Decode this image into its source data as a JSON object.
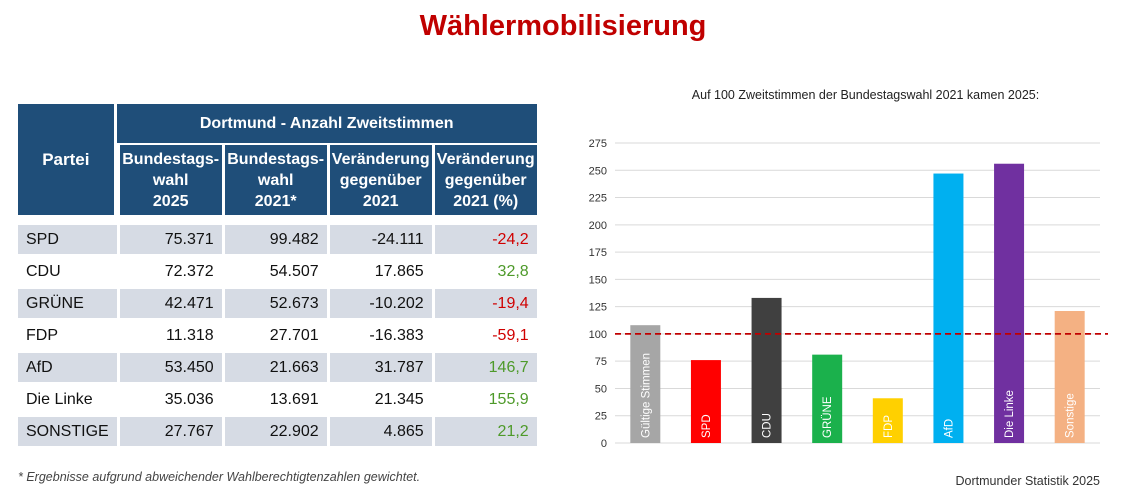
{
  "title": "Wählermobilisierung",
  "table": {
    "party_header": "Partei",
    "group_header": "Dortmund - Anzahl Zweitstimmen",
    "col_headers": [
      [
        "Bundestags-",
        "wahl",
        "2025"
      ],
      [
        "Bundestags-",
        "wahl",
        "2021*"
      ],
      [
        "Veränderung",
        "gegenüber",
        "2021"
      ],
      [
        "Veränderung",
        "gegenüber",
        "2021 (%)"
      ]
    ],
    "rows": [
      {
        "party": "SPD",
        "v2025": "75.371",
        "v2021": "99.482",
        "change": "-24.111",
        "pct": "-24,2"
      },
      {
        "party": "CDU",
        "v2025": "72.372",
        "v2021": "54.507",
        "change": "17.865",
        "pct": "32,8"
      },
      {
        "party": "GRÜNE",
        "v2025": "42.471",
        "v2021": "52.673",
        "change": "-10.202",
        "pct": "-19,4"
      },
      {
        "party": "FDP",
        "v2025": "11.318",
        "v2021": "27.701",
        "change": "-16.383",
        "pct": "-59,1"
      },
      {
        "party": "AfD",
        "v2025": "53.450",
        "v2021": "21.663",
        "change": "31.787",
        "pct": "146,7"
      },
      {
        "party": "Die Linke",
        "v2025": "35.036",
        "v2021": "13.691",
        "change": "21.345",
        "pct": "155,9"
      },
      {
        "party": "SONSTIGE",
        "v2025": "27.767",
        "v2021": "22.902",
        "change": "4.865",
        "pct": "21,2"
      }
    ]
  },
  "footnote": "* Ergebnisse aufgrund abweichender Wahlberechtigtenzahlen gewichtet.",
  "source": "Dortmunder Statistik 2025",
  "chart_data": {
    "type": "bar",
    "title": "Auf 100 Zweitstimmen der Bundestagswahl 2021 kamen 2025:",
    "categories": [
      "Gültige Stimmen",
      "SPD",
      "CDU",
      "GRÜNE",
      "FDP",
      "AfD",
      "Die Linke",
      "Sonstige"
    ],
    "values": [
      108,
      76,
      133,
      81,
      41,
      247,
      256,
      121
    ],
    "colors": [
      "#a6a6a6",
      "#ff0000",
      "#404040",
      "#1bb14c",
      "#ffd000",
      "#00b0f0",
      "#7030a0",
      "#f4b183"
    ],
    "ylim": [
      0,
      275
    ],
    "yticks": [
      0,
      25,
      50,
      75,
      100,
      125,
      150,
      175,
      200,
      225,
      250,
      275
    ],
    "reference_line": 100,
    "grid": true
  }
}
